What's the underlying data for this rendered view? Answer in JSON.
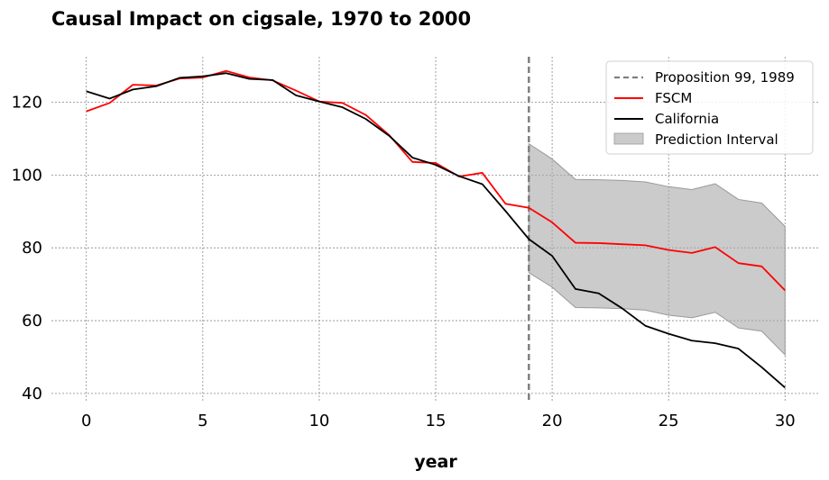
{
  "chart_data": {
    "type": "line",
    "title": "Causal Impact on cigsale, 1970 to 2000",
    "xlabel": "year",
    "ylabel": "",
    "xlim": [
      -1.5,
      31.5
    ],
    "ylim": [
      37.5,
      132.5
    ],
    "xticks": [
      0,
      5,
      10,
      15,
      20,
      25,
      30
    ],
    "yticks": [
      40,
      60,
      80,
      100,
      120
    ],
    "grid": true,
    "legend_position": "top-right",
    "intervention": {
      "x": 19,
      "label": "Proposition 99, 1989",
      "color": "#808080"
    },
    "x": [
      0,
      1,
      2,
      3,
      4,
      5,
      6,
      7,
      8,
      9,
      10,
      11,
      12,
      13,
      14,
      15,
      16,
      17,
      18,
      19,
      20,
      21,
      22,
      23,
      24,
      25,
      26,
      27,
      28,
      29,
      30
    ],
    "series": [
      {
        "name": "FSCM",
        "color": "#ff0000",
        "values": [
          117.5,
          119.8,
          124.8,
          124.6,
          126.5,
          126.8,
          128.6,
          126.8,
          126.0,
          123.2,
          120.2,
          119.8,
          116.5,
          111.0,
          103.6,
          103.3,
          99.6,
          100.6,
          92.1,
          91.0,
          87.0,
          81.4,
          81.3,
          81.0,
          80.7,
          79.4,
          78.6,
          80.2,
          75.8,
          74.9,
          68.3
        ]
      },
      {
        "name": "California",
        "color": "#000000",
        "values": [
          123.0,
          121.0,
          123.5,
          124.4,
          126.7,
          127.1,
          128.0,
          126.4,
          126.1,
          121.9,
          120.2,
          118.6,
          115.4,
          110.8,
          104.8,
          102.8,
          99.7,
          97.5,
          90.1,
          82.4,
          77.8,
          68.7,
          67.5,
          63.4,
          58.6,
          56.4,
          54.5,
          53.8,
          52.3,
          47.2,
          41.6
        ]
      }
    ],
    "interval": {
      "name": "Prediction Interval",
      "color": "#a9a9a9",
      "x": [
        19,
        20,
        21,
        22,
        23,
        24,
        25,
        26,
        27,
        28,
        29,
        30
      ],
      "upper": [
        108.6,
        104.4,
        98.8,
        98.7,
        98.5,
        98.1,
        96.8,
        96.0,
        97.6,
        93.3,
        92.3,
        85.9
      ],
      "lower": [
        73.2,
        69.2,
        63.6,
        63.5,
        63.3,
        62.9,
        61.5,
        60.8,
        62.3,
        58.0,
        57.1,
        50.6
      ]
    }
  }
}
